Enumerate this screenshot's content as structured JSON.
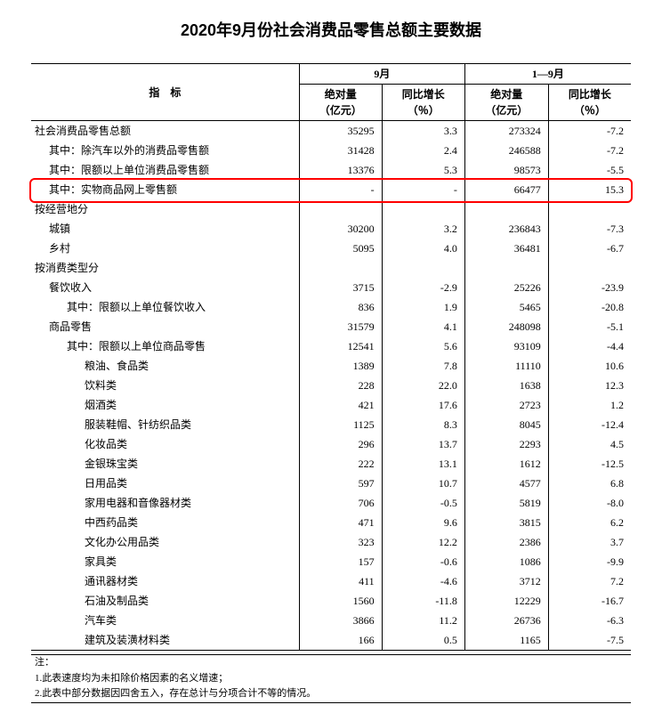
{
  "title": "2020年9月份社会消费品零售总额主要数据",
  "header": {
    "indicator": "指　标",
    "sept": "9月",
    "jan_sept": "1—9月",
    "abs": "绝对量\n（亿元）",
    "yoy": "同比增长\n（％）"
  },
  "rows": [
    {
      "label": "社会消费品零售总额",
      "indent": 0,
      "sep_abs": "35295",
      "sep_yoy": "3.3",
      "ytd_abs": "273324",
      "ytd_yoy": "-7.2"
    },
    {
      "label": "其中：除汽车以外的消费品零售额",
      "indent": 1,
      "sep_abs": "31428",
      "sep_yoy": "2.4",
      "ytd_abs": "246588",
      "ytd_yoy": "-7.2"
    },
    {
      "label": "其中：限额以上单位消费品零售额",
      "indent": 1,
      "sep_abs": "13376",
      "sep_yoy": "5.3",
      "ytd_abs": "98573",
      "ytd_yoy": "-5.5"
    },
    {
      "label": "其中：实物商品网上零售额",
      "indent": 1,
      "sep_abs": "-",
      "sep_yoy": "-",
      "ytd_abs": "66477",
      "ytd_yoy": "15.3",
      "highlight": true
    },
    {
      "label": "按经营地分",
      "indent": 0,
      "sep_abs": "",
      "sep_yoy": "",
      "ytd_abs": "",
      "ytd_yoy": ""
    },
    {
      "label": "城镇",
      "indent": 1,
      "sep_abs": "30200",
      "sep_yoy": "3.2",
      "ytd_abs": "236843",
      "ytd_yoy": "-7.3"
    },
    {
      "label": "乡村",
      "indent": 1,
      "sep_abs": "5095",
      "sep_yoy": "4.0",
      "ytd_abs": "36481",
      "ytd_yoy": "-6.7"
    },
    {
      "label": "按消费类型分",
      "indent": 0,
      "sep_abs": "",
      "sep_yoy": "",
      "ytd_abs": "",
      "ytd_yoy": ""
    },
    {
      "label": "餐饮收入",
      "indent": 1,
      "sep_abs": "3715",
      "sep_yoy": "-2.9",
      "ytd_abs": "25226",
      "ytd_yoy": "-23.9"
    },
    {
      "label": "其中：限额以上单位餐饮收入",
      "indent": 2,
      "sep_abs": "836",
      "sep_yoy": "1.9",
      "ytd_abs": "5465",
      "ytd_yoy": "-20.8"
    },
    {
      "label": "商品零售",
      "indent": 1,
      "sep_abs": "31579",
      "sep_yoy": "4.1",
      "ytd_abs": "248098",
      "ytd_yoy": "-5.1"
    },
    {
      "label": "其中：限额以上单位商品零售",
      "indent": 2,
      "sep_abs": "12541",
      "sep_yoy": "5.6",
      "ytd_abs": "93109",
      "ytd_yoy": "-4.4"
    },
    {
      "label": "粮油、食品类",
      "indent": 3,
      "sep_abs": "1389",
      "sep_yoy": "7.8",
      "ytd_abs": "11110",
      "ytd_yoy": "10.6"
    },
    {
      "label": "饮料类",
      "indent": 3,
      "sep_abs": "228",
      "sep_yoy": "22.0",
      "ytd_abs": "1638",
      "ytd_yoy": "12.3"
    },
    {
      "label": "烟酒类",
      "indent": 3,
      "sep_abs": "421",
      "sep_yoy": "17.6",
      "ytd_abs": "2723",
      "ytd_yoy": "1.2"
    },
    {
      "label": "服装鞋帽、针纺织品类",
      "indent": 3,
      "sep_abs": "1125",
      "sep_yoy": "8.3",
      "ytd_abs": "8045",
      "ytd_yoy": "-12.4"
    },
    {
      "label": "化妆品类",
      "indent": 3,
      "sep_abs": "296",
      "sep_yoy": "13.7",
      "ytd_abs": "2293",
      "ytd_yoy": "4.5"
    },
    {
      "label": "金银珠宝类",
      "indent": 3,
      "sep_abs": "222",
      "sep_yoy": "13.1",
      "ytd_abs": "1612",
      "ytd_yoy": "-12.5"
    },
    {
      "label": "日用品类",
      "indent": 3,
      "sep_abs": "597",
      "sep_yoy": "10.7",
      "ytd_abs": "4577",
      "ytd_yoy": "6.8"
    },
    {
      "label": "家用电器和音像器材类",
      "indent": 3,
      "sep_abs": "706",
      "sep_yoy": "-0.5",
      "ytd_abs": "5819",
      "ytd_yoy": "-8.0"
    },
    {
      "label": "中西药品类",
      "indent": 3,
      "sep_abs": "471",
      "sep_yoy": "9.6",
      "ytd_abs": "3815",
      "ytd_yoy": "6.2"
    },
    {
      "label": "文化办公用品类",
      "indent": 3,
      "sep_abs": "323",
      "sep_yoy": "12.2",
      "ytd_abs": "2386",
      "ytd_yoy": "3.7"
    },
    {
      "label": "家具类",
      "indent": 3,
      "sep_abs": "157",
      "sep_yoy": "-0.6",
      "ytd_abs": "1086",
      "ytd_yoy": "-9.9"
    },
    {
      "label": "通讯器材类",
      "indent": 3,
      "sep_abs": "411",
      "sep_yoy": "-4.6",
      "ytd_abs": "3712",
      "ytd_yoy": "7.2"
    },
    {
      "label": "石油及制品类",
      "indent": 3,
      "sep_abs": "1560",
      "sep_yoy": "-11.8",
      "ytd_abs": "12229",
      "ytd_yoy": "-16.7"
    },
    {
      "label": "汽车类",
      "indent": 3,
      "sep_abs": "3866",
      "sep_yoy": "11.2",
      "ytd_abs": "26736",
      "ytd_yoy": "-6.3"
    },
    {
      "label": "建筑及装潢材料类",
      "indent": 3,
      "sep_abs": "166",
      "sep_yoy": "0.5",
      "ytd_abs": "1165",
      "ytd_yoy": "-7.5"
    }
  ],
  "notes": {
    "lead": "注：",
    "n1": "1.此表速度均为未扣除价格因素的名义增速；",
    "n2": "2.此表中部分数据因四舍五入，存在总计与分项合计不等的情况。"
  },
  "highlight_color": "#ff0000"
}
